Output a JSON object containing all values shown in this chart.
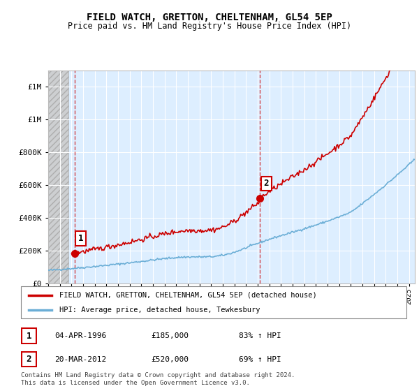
{
  "title": "FIELD WATCH, GRETTON, CHELTENHAM, GL54 5EP",
  "subtitle": "Price paid vs. HM Land Registry's House Price Index (HPI)",
  "legend_line1": "FIELD WATCH, GRETTON, CHELTENHAM, GL54 5EP (detached house)",
  "legend_line2": "HPI: Average price, detached house, Tewkesbury",
  "point1_label": "1",
  "point1_date": "04-APR-1996",
  "point1_price": "£185,000",
  "point1_hpi": "83% ↑ HPI",
  "point2_label": "2",
  "point2_date": "20-MAR-2012",
  "point2_price": "£520,000",
  "point2_hpi": "69% ↑ HPI",
  "footer": "Contains HM Land Registry data © Crown copyright and database right 2024.\nThis data is licensed under the Open Government Licence v3.0.",
  "hpi_color": "#6baed6",
  "price_color": "#cc0000",
  "point_color": "#cc0000",
  "ylim": [
    0,
    1300000
  ],
  "xlim_start": 1994.0,
  "xlim_end": 2025.5,
  "point1_x": 1996.25,
  "point1_y": 185000,
  "point2_x": 2012.2,
  "point2_y": 520000
}
